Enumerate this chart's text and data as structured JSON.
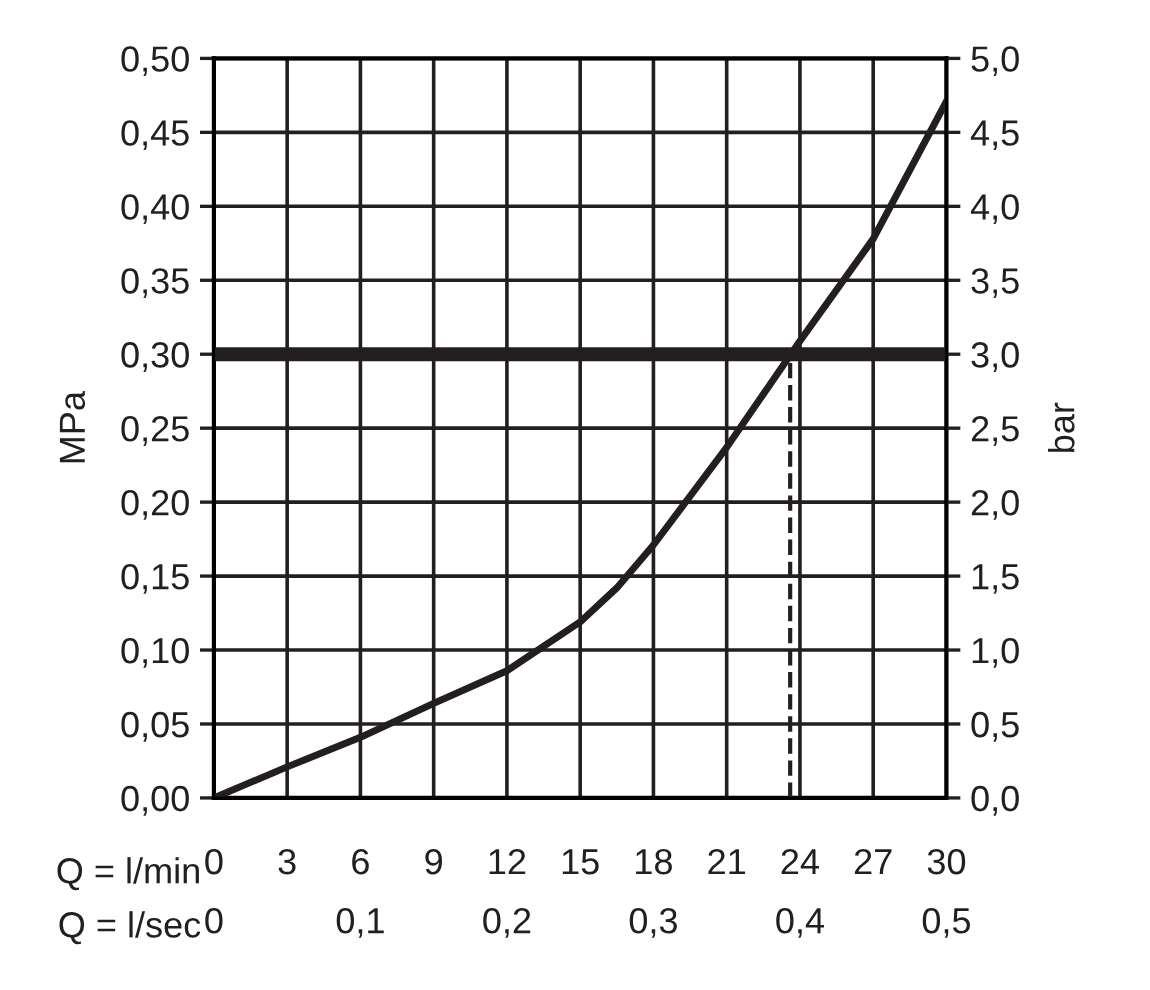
{
  "chart_data": {
    "type": "line",
    "xlabel": "Q = l/min",
    "x2label": "Q = l/sec",
    "ylabel": "MPa",
    "y2label": "bar",
    "x": [
      0,
      3,
      6,
      9,
      12,
      15,
      16.5,
      18,
      21,
      24,
      27,
      30
    ],
    "series": [
      {
        "color": "#231f20",
        "values": [
          0,
          0.021,
          0.041,
          0.064,
          0.086,
          0.119,
          0.142,
          0.171,
          0.237,
          0.309,
          0.378,
          0.471
        ]
      }
    ],
    "xlim": [
      0,
      30
    ],
    "xticks": [
      0,
      3,
      6,
      9,
      12,
      15,
      18,
      21,
      24,
      27,
      30
    ],
    "x2lim": [
      0,
      0.5
    ],
    "x2ticks": [
      0,
      {
        "value": 0.1,
        "label": "0,1"
      },
      {
        "value": 0.2,
        "label": "0,2"
      },
      {
        "value": 0.3,
        "label": "0,3"
      },
      {
        "value": 0.4,
        "label": "0,4"
      },
      {
        "value": 0.5,
        "label": "0,5"
      }
    ],
    "ylim": [
      0,
      0.5
    ],
    "yticks": [
      {
        "value": 0,
        "label": "0,00"
      },
      {
        "value": 0.05,
        "label": "0,05"
      },
      {
        "value": 0.1,
        "label": "0,10"
      },
      {
        "value": 0.15,
        "label": "0,15"
      },
      {
        "value": 0.2,
        "label": "0,20"
      },
      {
        "value": 0.25,
        "label": "0,25"
      },
      {
        "value": 0.3,
        "label": "0,30"
      },
      {
        "value": 0.35,
        "label": "0,35"
      },
      {
        "value": 0.4,
        "label": "0,40"
      },
      {
        "value": 0.45,
        "label": "0,45"
      },
      {
        "value": 0.5,
        "label": "0,50"
      }
    ],
    "y2lim": [
      0,
      5
    ],
    "y2ticks": [
      {
        "value": 0,
        "label": "0,0"
      },
      {
        "value": 0.5,
        "label": "0,5"
      },
      {
        "value": 1,
        "label": "1,0"
      },
      {
        "value": 1.5,
        "label": "1,5"
      },
      {
        "value": 2,
        "label": "2,0"
      },
      {
        "value": 2.5,
        "label": "2,5"
      },
      {
        "value": 3,
        "label": "3,0"
      },
      {
        "value": 3.5,
        "label": "3,5"
      },
      {
        "value": 4,
        "label": "4,0"
      },
      {
        "value": 4.5,
        "label": "4,5"
      },
      {
        "value": 5,
        "label": "5,0"
      }
    ],
    "ref_lines": [
      {
        "axis": "y",
        "value": 0.3,
        "color": "#231f20",
        "line_style": "solid"
      },
      {
        "axis": "x",
        "value": 23.6,
        "color": "#231f20",
        "line_style": "dashed"
      }
    ],
    "grid": true,
    "marker": "none",
    "line_style": "solid"
  }
}
